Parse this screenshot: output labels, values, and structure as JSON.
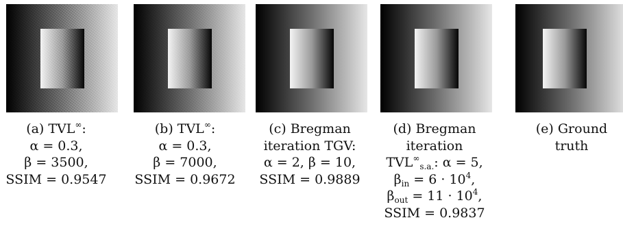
{
  "figure": {
    "panels": [
      {
        "id": "a",
        "lines": [
          "(a) TVL∞:",
          "α = 0.3,",
          "β = 3500,",
          "SSIM = 0.9547"
        ],
        "noise": "strong"
      },
      {
        "id": "b",
        "lines": [
          "(b) TVL∞:",
          "α = 0.3,",
          "β = 7000,",
          "SSIM = 0.9672"
        ],
        "noise": "light"
      },
      {
        "id": "c",
        "lines": [
          "(c) Bregman",
          "iteration TGV:",
          "α = 2, β = 10,",
          "SSIM = 0.9889"
        ],
        "noise": "none"
      },
      {
        "id": "d",
        "lines": [
          "(d) Bregman",
          "iteration",
          "TVL∞s.a.: α = 5,",
          "βin = 6 · 10⁴,",
          "βout = 11 · 10⁴,",
          "SSIM = 0.9837"
        ],
        "noise": "none"
      },
      {
        "id": "e",
        "lines": [
          "(e) Ground",
          "truth"
        ],
        "noise": "none"
      }
    ],
    "colors": {
      "dark": "#000000",
      "light": "#e6e6e6",
      "text": "#111111"
    }
  }
}
